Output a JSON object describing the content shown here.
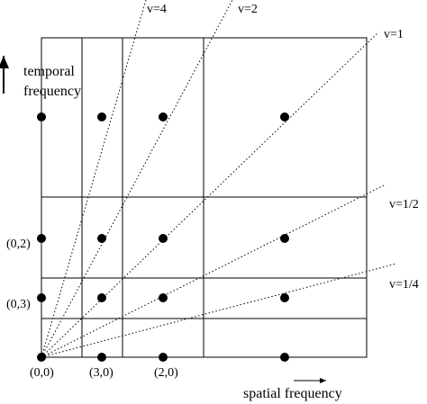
{
  "velocity_labels": [
    "v=4",
    "v=2",
    "v=1",
    "v=1/2",
    "v=1/4"
  ],
  "temporal_axis_label": [
    "temporal",
    "frequency"
  ],
  "spatial_axis_label": "spatial frequency",
  "point_labels": [
    "(0,2)",
    "(0,3)",
    "(0,0)",
    "(3,0)",
    "(2,0)"
  ]
}
